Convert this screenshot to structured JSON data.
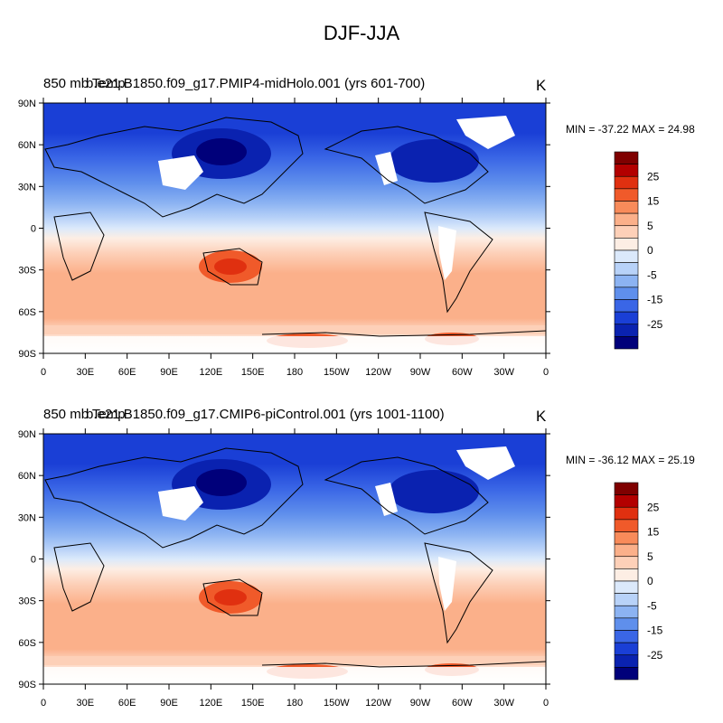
{
  "figure": {
    "title": "DJF-JJA"
  },
  "axes": {
    "lat_labels": [
      "90N",
      "60N",
      "30N",
      "0",
      "30S",
      "60S",
      "90S"
    ],
    "lon_labels": [
      "0",
      "30E",
      "60E",
      "90E",
      "120E",
      "150E",
      "180",
      "150W",
      "120W",
      "90W",
      "60W",
      "30W",
      "0"
    ]
  },
  "colorbar": {
    "labels": [
      "25",
      "15",
      "5",
      "0",
      "-5",
      "-15",
      "-25"
    ],
    "colors": [
      "#7f0000",
      "#b30000",
      "#e03010",
      "#f05a2a",
      "#f88b5a",
      "#fbb08a",
      "#fdd0b8",
      "#fdeee4",
      "#dbe9fb",
      "#b8d2f8",
      "#8cb3f2",
      "#5f8fec",
      "#3a66e6",
      "#1a3fd6",
      "#0a22b0",
      "#00007a"
    ]
  },
  "panels": [
    {
      "left_title": "850 mb Temp",
      "run_title": "b.e21.B1850.f09_g17.PMIP4-midHolo.001 (yrs 601-700)",
      "units": "K",
      "stats": "MIN = -37.22 MAX =  24.98"
    },
    {
      "left_title": "850 mb Temp",
      "run_title": "b.e21.B1850.f09_g17.CMIP6-piControl.001 (yrs 1001-1100)",
      "units": "K",
      "stats": "MIN = -36.12 MAX =  25.19"
    }
  ]
}
